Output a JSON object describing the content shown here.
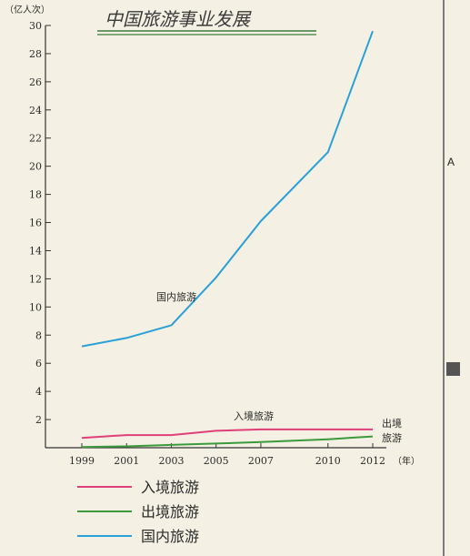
{
  "chart_data": {
    "type": "line",
    "title": "中国旅游事业发展",
    "y_unit": "（亿人次）",
    "x_unit": "（年）",
    "x": [
      "1999",
      "2001",
      "2003",
      "2005",
      "2007",
      "2010",
      "2012"
    ],
    "yticks": [
      2,
      4,
      6,
      8,
      10,
      12,
      14,
      16,
      18,
      20,
      22,
      24,
      26,
      28,
      30
    ],
    "ylim": [
      0,
      30
    ],
    "series": [
      {
        "name": "入境旅游",
        "color": "#e0407a",
        "values": [
          0.7,
          0.9,
          0.9,
          1.2,
          1.3,
          1.3,
          1.3
        ]
      },
      {
        "name": "出境旅游",
        "color": "#3c9a3c",
        "values": [
          0.05,
          0.1,
          0.2,
          0.3,
          0.4,
          0.6,
          0.8
        ]
      },
      {
        "name": "国内旅游",
        "color": "#2aa0d8",
        "values": [
          7.2,
          7.8,
          8.7,
          12.1,
          16.1,
          21.0,
          29.6
        ]
      }
    ],
    "annotations": {
      "domestic": "国内旅游",
      "inbound": "入境旅游",
      "outbound_line1": "出境",
      "outbound_line2": "旅游"
    },
    "legend_placement": "bottom-left"
  },
  "side": {
    "letter": "A"
  }
}
